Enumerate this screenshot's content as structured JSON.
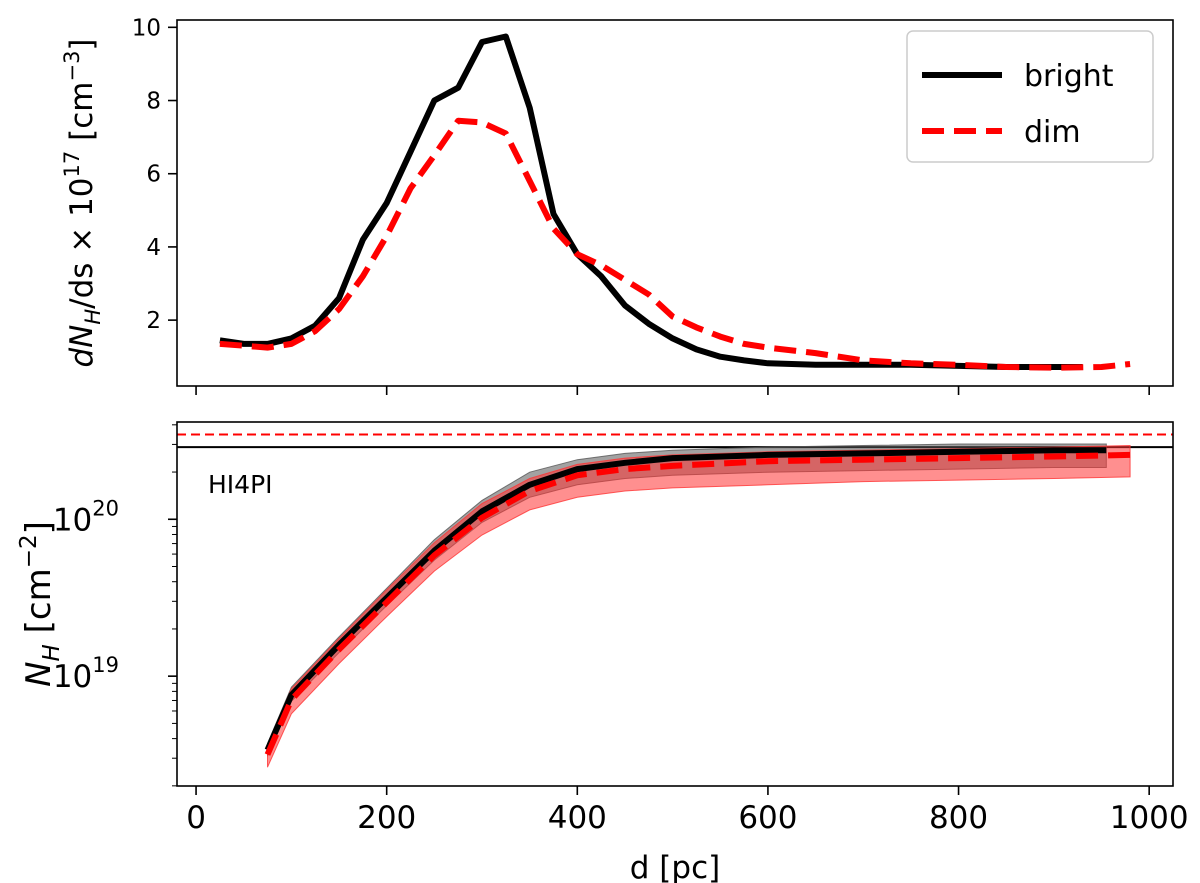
{
  "chart_data": [
    {
      "type": "line",
      "panel": "top",
      "xlabel": "",
      "ylabel_main": "dN",
      "ylabel_sub": "H",
      "ylabel_mid": "/ds × 10",
      "ylabel_sup": "17",
      "ylabel_unit": " [cm",
      "ylabel_unit_sup": "−3",
      "ylabel_end": "]",
      "xlim": [
        -20,
        1025
      ],
      "ylim": [
        0.2,
        10.2
      ],
      "xticks": [
        0,
        200,
        400,
        600,
        800,
        1000
      ],
      "yticks": [
        2,
        4,
        6,
        8,
        10
      ],
      "ytick_labels": [
        "2",
        "4",
        "6",
        "8",
        "10"
      ],
      "legend": {
        "position": "top-right",
        "entries": [
          "bright",
          "dim"
        ]
      },
      "series": [
        {
          "name": "bright",
          "color": "#000000",
          "style": "solid",
          "x": [
            25,
            50,
            75,
            100,
            125,
            150,
            175,
            200,
            225,
            250,
            275,
            300,
            325,
            350,
            375,
            400,
            425,
            450,
            475,
            500,
            525,
            550,
            575,
            600,
            650,
            700,
            750,
            800,
            850,
            900,
            930
          ],
          "y": [
            1.45,
            1.35,
            1.35,
            1.5,
            1.85,
            2.6,
            4.2,
            5.2,
            6.6,
            8.0,
            8.35,
            9.6,
            9.75,
            7.8,
            4.9,
            3.8,
            3.2,
            2.4,
            1.9,
            1.5,
            1.2,
            1.0,
            0.9,
            0.82,
            0.78,
            0.78,
            0.78,
            0.75,
            0.72,
            0.72,
            0.72
          ]
        },
        {
          "name": "dim",
          "color": "#ff0000",
          "style": "dashed",
          "x": [
            25,
            50,
            75,
            100,
            125,
            150,
            175,
            200,
            225,
            250,
            275,
            300,
            325,
            350,
            375,
            400,
            425,
            450,
            475,
            500,
            525,
            550,
            575,
            600,
            650,
            700,
            750,
            800,
            850,
            900,
            950,
            980
          ],
          "y": [
            1.35,
            1.3,
            1.25,
            1.35,
            1.7,
            2.3,
            3.2,
            4.3,
            5.6,
            6.5,
            7.45,
            7.4,
            7.1,
            5.8,
            4.5,
            3.8,
            3.5,
            3.1,
            2.7,
            2.1,
            1.8,
            1.55,
            1.35,
            1.25,
            1.1,
            0.9,
            0.82,
            0.78,
            0.72,
            0.7,
            0.72,
            0.8
          ]
        }
      ]
    },
    {
      "type": "line",
      "panel": "bottom",
      "yscale": "log",
      "xlabel": "d [pc]",
      "ylabel_main": "N",
      "ylabel_sub": "H",
      "ylabel_unit": " [cm",
      "ylabel_unit_sup": "−2",
      "ylabel_end": "]",
      "xlim": [
        -20,
        1025
      ],
      "ylim_exp": [
        18.3,
        20.62
      ],
      "xticks": [
        0,
        200,
        400,
        600,
        800,
        1000
      ],
      "xtick_labels": [
        "0",
        "200",
        "400",
        "600",
        "800",
        "1000"
      ],
      "yticks_exp": [
        19,
        20
      ],
      "ytick_base": "10",
      "ytick_sups": [
        "19",
        "20"
      ],
      "annotation": "HI4PI",
      "reference_lines": [
        {
          "name": "HI4PI bright",
          "color": "#000000",
          "style": "solid",
          "value_exp": 20.46
        },
        {
          "name": "HI4PI dim",
          "color": "#ff0000",
          "style": "dashed",
          "value_exp": 20.54
        }
      ],
      "series": [
        {
          "name": "bright",
          "color": "#000000",
          "style": "solid",
          "band_color": "#555555",
          "x": [
            75,
            100,
            150,
            200,
            250,
            300,
            350,
            400,
            450,
            500,
            600,
            700,
            800,
            900,
            955
          ],
          "y_exp": [
            18.53,
            18.88,
            19.2,
            19.5,
            19.8,
            20.05,
            20.22,
            20.32,
            20.36,
            20.39,
            20.41,
            20.42,
            20.43,
            20.44,
            20.44
          ],
          "y_lo_exp": [
            18.49,
            18.84,
            19.15,
            19.45,
            19.74,
            19.98,
            20.14,
            20.22,
            20.26,
            20.28,
            20.3,
            20.31,
            20.32,
            20.33,
            20.33
          ],
          "y_hi_exp": [
            18.57,
            18.93,
            19.25,
            19.56,
            19.87,
            20.12,
            20.3,
            20.38,
            20.42,
            20.44,
            20.46,
            20.47,
            20.48,
            20.48,
            20.48
          ]
        },
        {
          "name": "dim",
          "color": "#ff0000",
          "style": "dashed",
          "band_color": "#ff3333",
          "x": [
            75,
            100,
            150,
            200,
            250,
            300,
            350,
            400,
            450,
            500,
            600,
            700,
            800,
            900,
            980
          ],
          "y_exp": [
            18.5,
            18.85,
            19.17,
            19.47,
            19.77,
            20.01,
            20.18,
            20.28,
            20.32,
            20.34,
            20.37,
            20.38,
            20.39,
            20.4,
            20.41
          ],
          "y_lo_exp": [
            18.42,
            18.76,
            19.08,
            19.38,
            19.67,
            19.9,
            20.06,
            20.14,
            20.18,
            20.2,
            20.22,
            20.24,
            20.25,
            20.26,
            20.27
          ],
          "y_hi_exp": [
            18.56,
            18.92,
            19.24,
            19.55,
            19.85,
            20.1,
            20.26,
            20.35,
            20.39,
            20.41,
            20.43,
            20.44,
            20.45,
            20.46,
            20.47
          ]
        }
      ]
    }
  ]
}
